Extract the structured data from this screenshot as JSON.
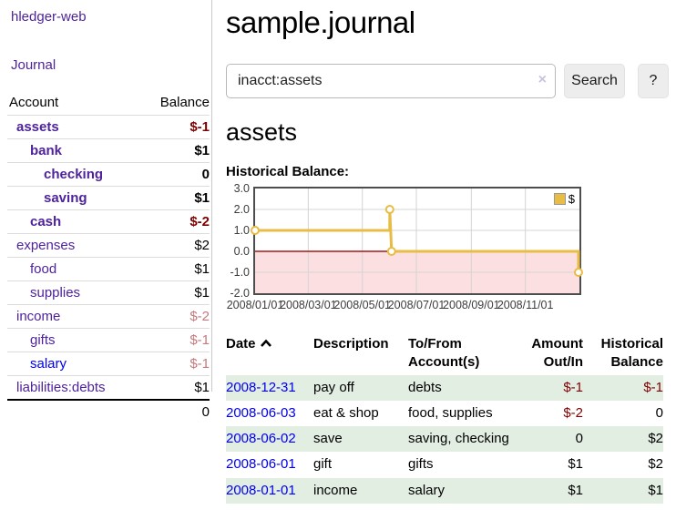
{
  "sidebar": {
    "app_title": "hledger-web",
    "journal_label": "Journal",
    "accounts_table": {
      "account_header": "Account",
      "balance_header": "Balance",
      "rows": [
        {
          "name": "assets",
          "indent": 0,
          "bold": true,
          "balance": "$-1",
          "balance_class": "neg-strong",
          "link_class": "purple"
        },
        {
          "name": "bank",
          "indent": 1,
          "bold": true,
          "balance": "$1",
          "balance_class": "pos",
          "link_class": "purple"
        },
        {
          "name": "checking",
          "indent": 2,
          "bold": true,
          "balance": "0",
          "balance_class": "pos",
          "link_class": "purple"
        },
        {
          "name": "saving",
          "indent": 2,
          "bold": true,
          "balance": "$1",
          "balance_class": "pos",
          "link_class": "purple"
        },
        {
          "name": "cash",
          "indent": 1,
          "bold": true,
          "balance": "$-2",
          "balance_class": "neg-strong",
          "link_class": "purple"
        },
        {
          "name": "expenses",
          "indent": 0,
          "bold": false,
          "balance": "$2",
          "balance_class": "pos",
          "link_class": "purple"
        },
        {
          "name": "food",
          "indent": 1,
          "bold": false,
          "balance": "$1",
          "balance_class": "pos",
          "link_class": "purple"
        },
        {
          "name": "supplies",
          "indent": 1,
          "bold": false,
          "balance": "$1",
          "balance_class": "pos",
          "link_class": "purple"
        },
        {
          "name": "income",
          "indent": 0,
          "bold": false,
          "balance": "$-2",
          "balance_class": "neg-muted",
          "link_class": "purple"
        },
        {
          "name": "gifts",
          "indent": 1,
          "bold": false,
          "balance": "$-1",
          "balance_class": "neg-muted",
          "link_class": "purple"
        },
        {
          "name": "salary",
          "indent": 1,
          "bold": false,
          "balance": "$-1",
          "balance_class": "neg-muted",
          "link_class": "blue"
        },
        {
          "name": "liabilities:debts",
          "indent": 0,
          "bold": false,
          "balance": "$1",
          "balance_class": "pos",
          "link_class": "purple"
        }
      ],
      "total": "0"
    }
  },
  "header": {
    "title": "sample.journal"
  },
  "search": {
    "value": "inacct:assets",
    "clear_icon": "×",
    "button_label": "Search",
    "help_label": "?"
  },
  "account_page": {
    "heading": "assets",
    "chart_title": "Historical Balance:"
  },
  "chart_data": {
    "type": "line",
    "title": "Historical Balance:",
    "xlim": [
      "2008-01-01",
      "2009-01-01"
    ],
    "ylim": [
      -2,
      3
    ],
    "grid": true,
    "legend_position": "top-right",
    "grid_color": "#d4d4d4",
    "negative_region_color": "#fcdfe0",
    "zero_line_color": "#9e1a1a",
    "x_ticks": [
      {
        "date": "2008-01-01",
        "label": "2008/01/01"
      },
      {
        "date": "2008-03-01",
        "label": "2008/03/01"
      },
      {
        "date": "2008-05-01",
        "label": "2008/05/01"
      },
      {
        "date": "2008-07-01",
        "label": "2008/07/01"
      },
      {
        "date": "2008-09-01",
        "label": "2008/09/01"
      },
      {
        "date": "2008-11-01",
        "label": "2008/11/01"
      }
    ],
    "y_ticks": [
      {
        "v": 3,
        "label": "3.0"
      },
      {
        "v": 2,
        "label": "2.0"
      },
      {
        "v": 1,
        "label": "1.0"
      },
      {
        "v": 0,
        "label": "0.0"
      },
      {
        "v": -1,
        "label": "-1.0"
      },
      {
        "v": -2,
        "label": "-2.0"
      }
    ],
    "series": [
      {
        "name": "$",
        "color": "#e8bc45",
        "points": [
          [
            "2008-01-01",
            1
          ],
          [
            "2008-06-01",
            1
          ],
          [
            "2008-06-01",
            2
          ],
          [
            "2008-06-03",
            0
          ],
          [
            "2008-12-31",
            0
          ],
          [
            "2008-12-31",
            -1
          ]
        ],
        "markers": [
          [
            "2008-01-01",
            1
          ],
          [
            "2008-06-01",
            2
          ],
          [
            "2008-06-03",
            0
          ],
          [
            "2008-12-31",
            -1
          ]
        ]
      }
    ]
  },
  "register_table": {
    "headers": [
      {
        "lines": [
          "Date"
        ],
        "align": "left",
        "sorted": "asc"
      },
      {
        "lines": [
          "Description"
        ],
        "align": "left"
      },
      {
        "lines": [
          "To/From",
          "Account(s)"
        ],
        "align": "left"
      },
      {
        "lines": [
          "Amount",
          "Out/In"
        ],
        "align": "right"
      },
      {
        "lines": [
          "Historical",
          "Balance"
        ],
        "align": "right"
      }
    ],
    "rows": [
      {
        "date": "2008-12-31",
        "description": "pay off",
        "accounts": "debts",
        "amount": "$-1",
        "amount_neg": true,
        "balance": "$-1",
        "balance_neg": true
      },
      {
        "date": "2008-06-03",
        "description": "eat & shop",
        "accounts": "food, supplies",
        "amount": "$-2",
        "amount_neg": true,
        "balance": "0",
        "balance_neg": false
      },
      {
        "date": "2008-06-02",
        "description": "save",
        "accounts": "saving, checking",
        "amount": "0",
        "amount_neg": false,
        "balance": "$2",
        "balance_neg": false
      },
      {
        "date": "2008-06-01",
        "description": "gift",
        "accounts": "gifts",
        "amount": "$1",
        "amount_neg": false,
        "balance": "$2",
        "balance_neg": false
      },
      {
        "date": "2008-01-01",
        "description": "income",
        "accounts": "salary",
        "amount": "$1",
        "amount_neg": false,
        "balance": "$1",
        "balance_neg": false
      }
    ]
  },
  "colors": {
    "link_purple": "#4e239b",
    "link_blue": "#0000ee",
    "negative_strong": "#7f0000",
    "negative_muted": "#c4797d",
    "row_stripe_green": "#e3eee3",
    "chart_gold": "#e8bc45"
  }
}
